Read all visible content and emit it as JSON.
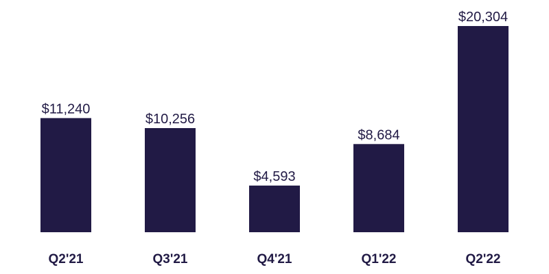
{
  "chart_data": {
    "type": "bar",
    "categories": [
      "Q2'21",
      "Q3'21",
      "Q4'21",
      "Q1'22",
      "Q2'22"
    ],
    "values": [
      11240,
      10256,
      4593,
      8684,
      20304
    ],
    "value_labels": [
      "$11,240",
      "$10,256",
      "$4,593",
      "$8,684",
      "$20,304"
    ],
    "title": "",
    "xlabel": "",
    "ylabel": "",
    "ylim": [
      0,
      20304
    ],
    "grid": false,
    "legend": "none"
  },
  "colors": {
    "bar": "#211a45",
    "value_text": "#211a45",
    "category_text": "#211a45",
    "background": "#ffffff"
  }
}
